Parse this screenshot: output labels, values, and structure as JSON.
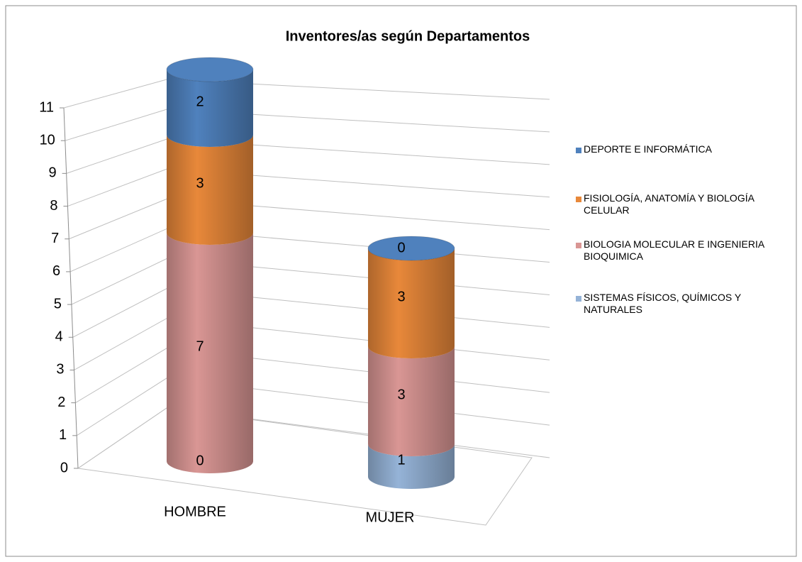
{
  "chart_data": {
    "type": "bar3d_cylinder_stacked",
    "title": "Inventores/as según Departamentos",
    "categories": [
      "HOMBRE",
      "MUJER"
    ],
    "series": [
      {
        "name": "SISTEMAS FÍSICOS, QUÍMICOS Y NATURALES",
        "color": "#95b3d7",
        "values": [
          0,
          1
        ]
      },
      {
        "name": "BIOLOGIA MOLECULAR E INGENIERIA BIOQUIMICA",
        "color": "#d99694",
        "values": [
          7,
          3
        ]
      },
      {
        "name": "FISIOLOGÍA, ANATOMÍA Y BIOLOGÍA CELULAR",
        "color": "#e8883a",
        "values": [
          3,
          3
        ]
      },
      {
        "name": "DEPORTE E INFORMÁTICA",
        "color": "#4f81bd",
        "values": [
          2,
          0
        ]
      }
    ],
    "ylim": [
      0,
      11
    ],
    "yticks": [
      0,
      1,
      2,
      3,
      4,
      5,
      6,
      7,
      8,
      9,
      10,
      11
    ],
    "grid": true,
    "legend": "right"
  }
}
